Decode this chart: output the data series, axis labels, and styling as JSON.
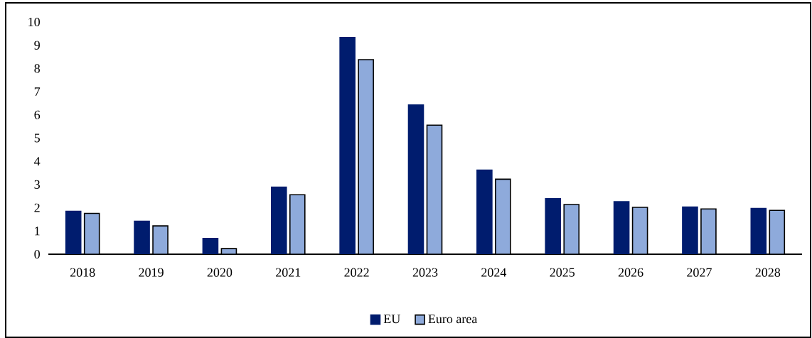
{
  "chart_data": {
    "type": "bar",
    "categories": [
      "2018",
      "2019",
      "2020",
      "2021",
      "2022",
      "2023",
      "2024",
      "2025",
      "2026",
      "2027",
      "2028"
    ],
    "series": [
      {
        "name": "EU",
        "color": "#001c6e",
        "values": [
          1.85,
          1.42,
          0.68,
          2.89,
          9.33,
          6.43,
          3.62,
          2.39,
          2.26,
          2.03,
          1.97
        ]
      },
      {
        "name": "Euro area",
        "color": "#8eaadb",
        "values": [
          1.76,
          1.22,
          0.24,
          2.56,
          8.38,
          5.56,
          3.23,
          2.14,
          2.02,
          1.95,
          1.89
        ]
      }
    ],
    "ylim": [
      0,
      10
    ],
    "yticks": [
      0,
      1,
      2,
      3,
      4,
      5,
      6,
      7,
      8,
      9,
      10
    ],
    "grid": false,
    "legend": "bottom"
  }
}
